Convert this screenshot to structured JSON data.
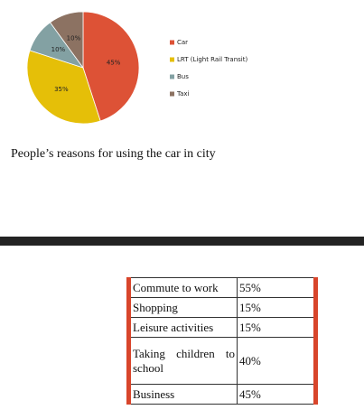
{
  "chart_data": {
    "type": "pie",
    "categories": [
      "Car",
      "LRT (Light Rail Transit)",
      "Bus",
      "Taxi"
    ],
    "values": [
      45,
      35,
      10,
      10
    ],
    "value_labels": [
      "45%",
      "35%",
      "10%",
      "10%"
    ],
    "colors": [
      "#dd5236",
      "#e5bf08",
      "#83a1a3",
      "#8c7262"
    ],
    "legend": "right"
  },
  "caption": "People’s reasons for using the car in city",
  "table": {
    "rows": [
      [
        "Commute to work",
        "55%"
      ],
      [
        "Shopping",
        "15%"
      ],
      [
        "Leisure activities",
        "15%"
      ],
      [
        "Taking children to school",
        "40%"
      ],
      [
        "Business",
        "45%"
      ]
    ]
  }
}
